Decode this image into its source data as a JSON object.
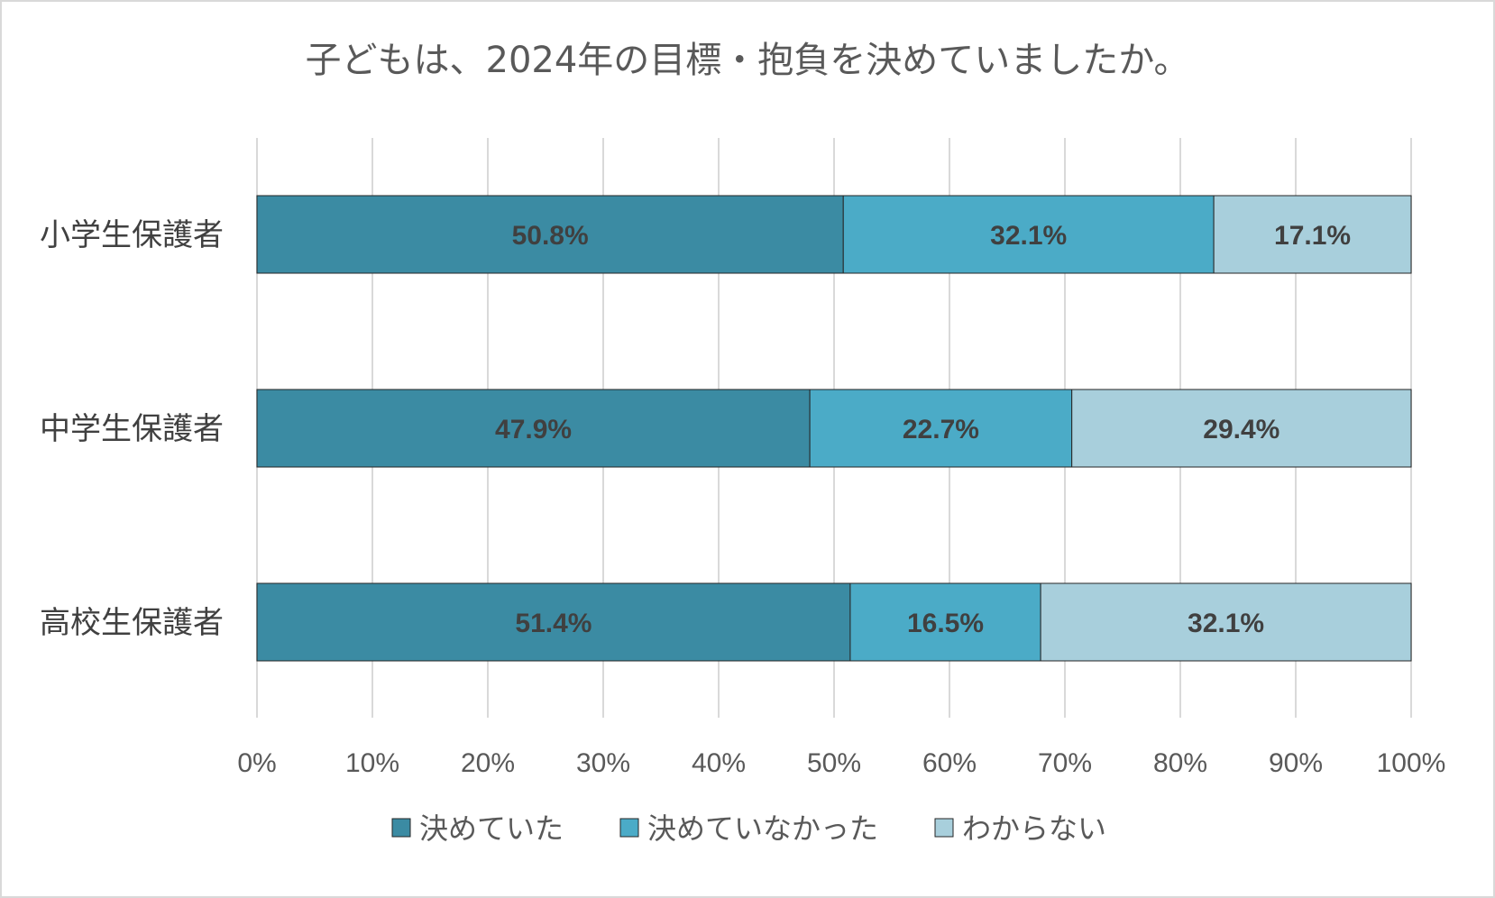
{
  "chart_data": {
    "type": "bar",
    "orientation": "horizontal",
    "stacked": "percent",
    "title": "子どもは、2024年の目標・抱負を決めていましたか。",
    "categories": [
      "小学生保護者",
      "中学生保護者",
      "高校生保護者"
    ],
    "series": [
      {
        "name": "決めていた",
        "color": "#3b8ba3",
        "values": [
          50.8,
          47.9,
          51.4
        ],
        "labels": [
          "50.8%",
          "47.9%",
          "51.4%"
        ]
      },
      {
        "name": "決めていなかった",
        "color": "#4babc7",
        "values": [
          32.1,
          22.7,
          16.5
        ],
        "labels": [
          "32.1%",
          "22.7%",
          "16.5%"
        ]
      },
      {
        "name": "わからない",
        "color": "#a8cfdc",
        "values": [
          17.1,
          29.4,
          32.1
        ],
        "labels": [
          "17.1%",
          "29.4%",
          "32.1%"
        ]
      }
    ],
    "xlim": [
      0,
      100
    ],
    "xticks": [
      "0%",
      "10%",
      "20%",
      "30%",
      "40%",
      "50%",
      "60%",
      "70%",
      "80%",
      "90%",
      "100%"
    ],
    "grid": true,
    "legend_position": "bottom"
  }
}
